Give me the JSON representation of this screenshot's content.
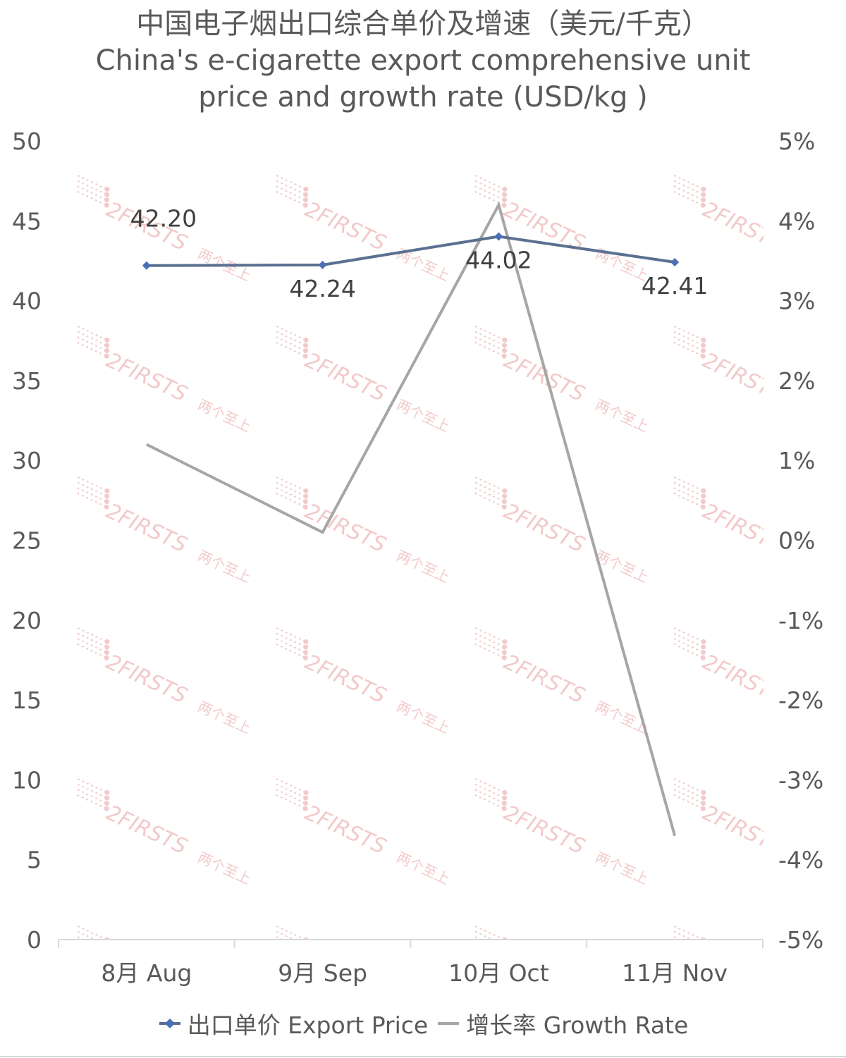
{
  "chart_data": {
    "type": "line",
    "title": [
      "中国电子烟出口综合单价及增速（美元/千克）",
      "China's e-cigarette export comprehensive unit",
      "price and growth rate (USD/kg )"
    ],
    "categories": [
      "8月 Aug",
      "9月 Sep",
      "10月 Oct",
      "11月 Nov"
    ],
    "series": [
      {
        "name": "出口单价 Export Price",
        "axis": "left",
        "values": [
          42.2,
          42.24,
          44.02,
          42.41
        ],
        "labels": [
          "42.20",
          "42.24",
          "44.02",
          "42.41"
        ],
        "color": "#4A6FB5",
        "line_color": "#5B7091",
        "marker": "diamond"
      },
      {
        "name": "增长率 Growth Rate",
        "axis": "right",
        "values": [
          1.2,
          0.1,
          4.2,
          -3.7
        ],
        "color": "#A6A6A6",
        "marker": "none"
      }
    ],
    "y_left": {
      "ylim": [
        0,
        50
      ],
      "ticks": [
        "0",
        "5",
        "10",
        "15",
        "20",
        "25",
        "30",
        "35",
        "40",
        "45",
        "50"
      ]
    },
    "y_right": {
      "ylim": [
        -5,
        5
      ],
      "ticks": [
        "-5%",
        "-4%",
        "-3%",
        "-2%",
        "-1%",
        "0%",
        "1%",
        "2%",
        "3%",
        "4%",
        "5%"
      ]
    },
    "grid": false,
    "legend_position": "bottom"
  },
  "watermark": {
    "text": "2FIRSTS",
    "subtext": "两个至上",
    "color": "#E8A0A0"
  },
  "colors": {
    "text": "#595959",
    "axis": "#D9D9D9"
  }
}
